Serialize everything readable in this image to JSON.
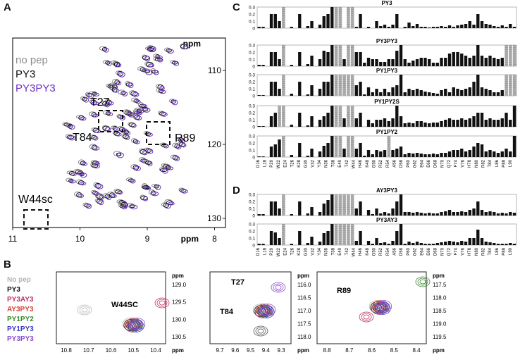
{
  "panelA": {
    "letter": "A",
    "legend": [
      {
        "text": "no pep",
        "color": "#8c8c8c"
      },
      {
        "text": "PY3",
        "color": "#111111"
      },
      {
        "text": "PY3PY3",
        "color": "#6a2fc7"
      }
    ],
    "boxes": [
      "T27",
      "T84",
      "R89",
      "W44sc"
    ],
    "xticks": [
      "11",
      "10",
      "9",
      "8"
    ],
    "yticks": [
      "110",
      "120",
      "130"
    ],
    "unit": "ppm"
  },
  "panelB": {
    "letter": "B",
    "legend": [
      {
        "text": "No pep",
        "color": "#b3b3b3"
      },
      {
        "text": "PY3",
        "color": "#111111"
      },
      {
        "text": "PY3AY3",
        "color": "#c0306a"
      },
      {
        "text": "AY3PY3",
        "color": "#d84030"
      },
      {
        "text": "PY1PY2",
        "color": "#3a8a2e"
      },
      {
        "text": "PY1PY3",
        "color": "#3a3acc"
      },
      {
        "text": "PY3PY3",
        "color": "#8a4fd0"
      }
    ],
    "zooms": [
      {
        "label": "W44SC",
        "xticks": [
          "10.8",
          "10.7",
          "10.6",
          "10.5",
          "10.4"
        ],
        "yticks": [
          "129.0",
          "129.5",
          "130.0",
          "130.5"
        ]
      },
      {
        "label": "T27",
        "label2": "T84",
        "xticks": [
          "9.7",
          "9.6",
          "9.5",
          "9.4",
          "9.3"
        ],
        "yticks": [
          "116.0",
          "116.5",
          "117.0",
          "117.5",
          "118.0"
        ]
      },
      {
        "label": "R89",
        "xticks": [
          "8.8",
          "8.7",
          "8.6",
          "8.5",
          "8.4"
        ],
        "yticks": [
          "117.5",
          "118.0",
          "118.5",
          "119.0",
          "119.5"
        ]
      }
    ],
    "unit": "ppm"
  },
  "panelC": {
    "letter": "C",
    "yticks": [
      "0.3",
      "0.2",
      "0.1",
      "0"
    ]
  },
  "panelD": {
    "letter": "D"
  },
  "chart_data": [
    {
      "type": "bar",
      "title": "PY3",
      "ylim": [
        0,
        0.3
      ],
      "values": [
        0.02,
        0.02,
        0,
        0.2,
        0.2,
        0.1,
        0.3,
        0,
        0.02,
        0,
        0.2,
        0,
        0.03,
        0.1,
        0,
        0.05,
        0.17,
        0.2,
        0.3,
        0.3,
        0.3,
        0,
        0.3,
        0.3,
        0.02,
        0.2,
        0,
        0.02,
        0,
        0.1,
        0.03,
        0.05,
        0.02,
        0.05,
        0.2,
        0,
        0.02,
        0.08,
        0.03,
        0.06,
        0.02,
        0.02,
        0.01,
        0.02,
        0.02,
        0.03,
        0.02,
        0.04,
        0.02,
        0.04,
        0.05,
        0.06,
        0.1,
        0.05,
        0.2,
        0.1,
        0.06,
        0.05,
        0.03,
        0.02,
        0.04,
        0.02,
        0.06,
        0.02
      ]
    },
    {
      "type": "bar",
      "title": "PY3PY3",
      "ylim": [
        0,
        0.3
      ],
      "values": [
        0.02,
        0.02,
        0,
        0.2,
        0.2,
        0.1,
        0.3,
        0,
        0.02,
        0,
        0.2,
        0,
        0.03,
        0.15,
        0,
        0.1,
        0.22,
        0.2,
        0.3,
        0.3,
        0.3,
        0.1,
        0.3,
        0.3,
        0.2,
        0.2,
        0.05,
        0.12,
        0.1,
        0.1,
        0.06,
        0.06,
        0.1,
        0.1,
        0.22,
        0.3,
        0.1,
        0.05,
        0.08,
        0.1,
        0.12,
        0.12,
        0.1,
        0.05,
        0.05,
        0.12,
        0.12,
        0.18,
        0.2,
        0.2,
        0.18,
        0.15,
        0.12,
        0.15,
        0.3,
        0.15,
        0.12,
        0.15,
        0.12,
        0.1,
        0.12,
        0.3,
        0.3,
        0.3
      ]
    },
    {
      "type": "bar",
      "title": "PY1PY3",
      "ylim": [
        0,
        0.3
      ],
      "values": [
        0.01,
        0.01,
        0,
        0.2,
        0.2,
        0.1,
        0.3,
        0,
        0.03,
        0,
        0.2,
        0,
        0.02,
        0.15,
        0,
        0.1,
        0.2,
        0.2,
        0.3,
        0.3,
        0.3,
        0.15,
        0.3,
        0.3,
        0.15,
        0.2,
        0.02,
        0.12,
        0.05,
        0.1,
        0.05,
        0.1,
        0.05,
        0.12,
        0.15,
        0.3,
        0.05,
        0.1,
        0.08,
        0.1,
        0.08,
        0.06,
        0.05,
        0.04,
        0.03,
        0.08,
        0.1,
        0.05,
        0.12,
        0.1,
        0.08,
        0.1,
        0.12,
        0.2,
        0.3,
        0.12,
        0.1,
        0.08,
        0.05,
        0.05,
        0.08,
        0.3,
        0.3,
        0.3
      ]
    },
    {
      "type": "bar",
      "title": "PY1PY2S",
      "ylim": [
        0,
        0.3
      ],
      "values": [
        0.01,
        0.01,
        0,
        0.15,
        0.2,
        0.3,
        0.3,
        0,
        0.03,
        0,
        0.2,
        0,
        0.02,
        0.15,
        0,
        0.1,
        0.15,
        0.2,
        0.3,
        0.3,
        0.3,
        0.12,
        0.3,
        0.3,
        0.12,
        0.2,
        0,
        0.1,
        0.05,
        0.1,
        0.1,
        0.12,
        0.08,
        0.12,
        0.3,
        0.15,
        0.05,
        0.06,
        0.05,
        0.08,
        0.08,
        0.06,
        0.05,
        0.06,
        0.06,
        0.08,
        0.1,
        0.12,
        0.1,
        0.1,
        0.12,
        0.1,
        0.12,
        0.15,
        0.2,
        0.2,
        0.1,
        0.12,
        0.1,
        0.1,
        0.12,
        0.2,
        0.1,
        0.3
      ]
    },
    {
      "type": "bar",
      "title": "PY1PY2",
      "ylim": [
        0,
        0.3
      ],
      "values": [
        0.01,
        0.01,
        0,
        0.15,
        0.18,
        0.25,
        0.3,
        0,
        0.03,
        0,
        0.2,
        0,
        0.02,
        0.12,
        0,
        0.08,
        0.16,
        0.2,
        0.3,
        0.3,
        0.3,
        0.12,
        0.3,
        0.3,
        0.12,
        0.2,
        0.02,
        0.1,
        0.04,
        0.1,
        0.08,
        0.1,
        0.3,
        0.1,
        0.12,
        0.15,
        0.04,
        0.06,
        0.05,
        0.06,
        0.05,
        0.04,
        0.04,
        0.05,
        0.04,
        0.06,
        0.06,
        0.08,
        0.1,
        0.1,
        0.12,
        0.08,
        0.1,
        0.15,
        0.2,
        0.18,
        0.08,
        0.1,
        0.08,
        0.06,
        0.08,
        0.12,
        0.08,
        0.3
      ]
    },
    {
      "type": "bar",
      "title": "AY3PY3",
      "ylim": [
        0,
        0.3
      ],
      "values": [
        0.02,
        0.02,
        0,
        0.2,
        0.2,
        0.1,
        0.3,
        0,
        0.02,
        0,
        0.2,
        0,
        0.03,
        0.12,
        0,
        0.05,
        0.17,
        0.22,
        0.3,
        0.3,
        0.3,
        0.3,
        0.3,
        0.3,
        0.1,
        0.2,
        0,
        0.08,
        0.02,
        0.1,
        0.03,
        0.05,
        0.03,
        0.1,
        0.2,
        0.3,
        0.05,
        0.05,
        0.04,
        0.05,
        0.04,
        0.03,
        0.04,
        0.03,
        0.03,
        0.05,
        0.06,
        0.08,
        0.05,
        0.05,
        0.06,
        0.05,
        0.08,
        0.1,
        0.2,
        0.08,
        0.05,
        0.06,
        0.05,
        0.03,
        0.04,
        0.03,
        0.05,
        0.04
      ]
    },
    {
      "type": "bar",
      "title": "PY3AY3",
      "ylim": [
        0,
        0.3
      ],
      "values": [
        0.02,
        0.02,
        0,
        0.2,
        0.18,
        0.1,
        0.3,
        0,
        0.02,
        0,
        0.2,
        0,
        0.03,
        0.12,
        0,
        0.05,
        0.17,
        0.2,
        0.3,
        0.3,
        0.3,
        0.3,
        0.3,
        0.3,
        0.06,
        0.2,
        0,
        0.06,
        0.02,
        0.1,
        0.03,
        0.04,
        0.02,
        0.06,
        0.2,
        0.3,
        0.02,
        0.05,
        0.03,
        0.05,
        0.03,
        0.02,
        0.02,
        0.02,
        0.03,
        0.04,
        0.05,
        0.06,
        0.05,
        0.04,
        0.06,
        0.05,
        0.1,
        0.1,
        0.22,
        0.1,
        0.05,
        0.04,
        0.03,
        0.02,
        0.02,
        0.02,
        0.03,
        0.02
      ]
    }
  ],
  "greyIndexCommon": [
    6,
    19,
    20,
    22,
    23
  ],
  "greyIndexExtra": [
    [],
    [
      61,
      62,
      63
    ],
    [
      21,
      61,
      62,
      63
    ],
    [
      5,
      6
    ],
    [
      32
    ],
    [
      21
    ],
    [
      21
    ]
  ],
  "xlabels": [
    "D16",
    "L18",
    "P20",
    "W22",
    "E24",
    "T26",
    "K28",
    "G30",
    "V32",
    "Y34",
    "N36",
    "T38",
    "E40",
    "T42",
    "W44",
    "H46",
    "K48",
    "G50",
    "R52",
    "R54",
    "A56",
    "D58",
    "P60",
    "G62",
    "E64",
    "E66",
    "D68",
    "N70",
    "Q72",
    "F74",
    "V76",
    "H78",
    "N80",
    "R82",
    "T84",
    "L86",
    "P88",
    "L90"
  ]
}
